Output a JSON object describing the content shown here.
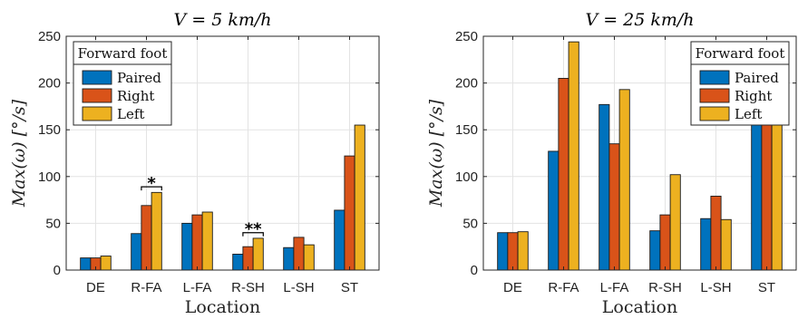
{
  "chart_data": [
    {
      "type": "bar",
      "title": "V = 5 km/h",
      "xlabel": "Location",
      "ylabel": "Max(ω) [°/s]",
      "categories": [
        "DE",
        "R-FA",
        "L-FA",
        "R-SH",
        "L-SH",
        "ST"
      ],
      "ylim": [
        0,
        250
      ],
      "yticks": [
        "0",
        "50",
        "100",
        "150",
        "200",
        "250"
      ],
      "grid": true,
      "legend_title": "Forward foot",
      "legend_position": "top-left",
      "series": [
        {
          "name": "Paired",
          "color": "#0072BD",
          "values": [
            13,
            39,
            50,
            17,
            24,
            64
          ]
        },
        {
          "name": "Right",
          "color": "#D95319",
          "values": [
            13,
            69,
            59,
            25,
            35,
            122
          ]
        },
        {
          "name": "Left",
          "color": "#EDB120",
          "values": [
            15,
            83,
            62,
            34,
            27,
            155
          ]
        }
      ],
      "annotations": [
        {
          "category": "R-FA",
          "label": "*",
          "y": 89
        },
        {
          "category": "R-SH",
          "label": "**",
          "y": 40
        }
      ]
    },
    {
      "type": "bar",
      "title": "V = 25 km/h",
      "xlabel": "Location",
      "ylabel": "Max(ω) [°/s]",
      "categories": [
        "DE",
        "R-FA",
        "L-FA",
        "R-SH",
        "L-SH",
        "ST"
      ],
      "ylim": [
        0,
        250
      ],
      "yticks": [
        "0",
        "50",
        "100",
        "150",
        "200",
        "250"
      ],
      "grid": true,
      "legend_title": "Forward foot",
      "legend_position": "top-right",
      "series": [
        {
          "name": "Paired",
          "color": "#0072BD",
          "values": [
            40,
            127,
            177,
            42,
            55,
            158
          ]
        },
        {
          "name": "Right",
          "color": "#D95319",
          "values": [
            40,
            205,
            135,
            59,
            79,
            217
          ]
        },
        {
          "name": "Left",
          "color": "#EDB120",
          "values": [
            41,
            244,
            193,
            102,
            54,
            174
          ]
        }
      ],
      "annotations": []
    }
  ]
}
